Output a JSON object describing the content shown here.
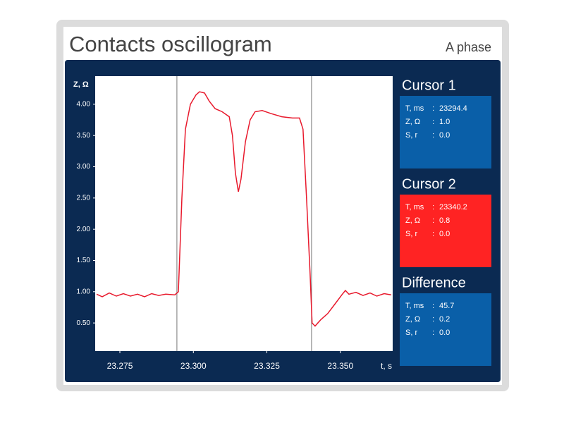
{
  "header": {
    "title": "Contacts oscillogram",
    "phase": "A phase"
  },
  "chart_data": {
    "type": "line",
    "ylabel": "Z, Ω",
    "xlabel": "t, s",
    "x": [
      23.2671,
      23.269,
      23.2714,
      23.2738,
      23.2762,
      23.2786,
      23.281,
      23.2834,
      23.2858,
      23.2882,
      23.2906,
      23.2937,
      23.2949,
      23.2961,
      23.2973,
      23.299,
      23.3009,
      23.3021,
      23.3038,
      23.3054,
      23.3074,
      23.3098,
      23.3122,
      23.3133,
      23.3143,
      23.3153,
      23.3162,
      23.3177,
      23.3193,
      23.321,
      23.3234,
      23.3265,
      23.3301,
      23.3337,
      23.3361,
      23.3373,
      23.3385,
      23.3397,
      23.3404,
      23.3414,
      23.3433,
      23.3457,
      23.3481,
      23.3505,
      23.3517,
      23.3529,
      23.3553,
      23.3577,
      23.3601,
      23.3624,
      23.3649,
      23.3673
    ],
    "series": [
      {
        "color": "#e8192c",
        "values": [
          0.96,
          0.92,
          0.98,
          0.93,
          0.97,
          0.93,
          0.96,
          0.92,
          0.97,
          0.94,
          0.96,
          0.95,
          1.0,
          2.5,
          3.6,
          4.0,
          4.15,
          4.2,
          4.18,
          4.05,
          3.93,
          3.88,
          3.8,
          3.5,
          2.9,
          2.6,
          2.8,
          3.4,
          3.75,
          3.88,
          3.9,
          3.85,
          3.8,
          3.78,
          3.78,
          3.6,
          2.5,
          1.3,
          0.5,
          0.45,
          0.55,
          0.65,
          0.8,
          0.95,
          1.02,
          0.96,
          0.99,
          0.94,
          0.98,
          0.93,
          0.97,
          0.95
        ]
      }
    ],
    "xlim": [
      23.2666,
      23.3678
    ],
    "xticks": [
      23.275,
      {
        "value": 23.3,
        "label": "23.300"
      },
      23.325,
      {
        "value": 23.35,
        "label": "23.350"
      }
    ],
    "ylim": [
      0.05,
      4.45
    ],
    "yticks": [
      {
        "value": 0.5,
        "label": "0.50"
      },
      {
        "value": 1,
        "label": "1.00"
      },
      {
        "value": 1.5,
        "label": "1.50"
      },
      {
        "value": 2,
        "label": "2.00"
      },
      {
        "value": 2.5,
        "label": "2.50"
      },
      {
        "value": 3,
        "label": "3.00"
      },
      {
        "value": 3.5,
        "label": "3.50"
      },
      {
        "value": 4,
        "label": "4.00"
      }
    ],
    "grid": false
  },
  "separator": ":",
  "panels": [
    {
      "title": "Cursor   1",
      "color": "#0a5fa8",
      "rows": [
        {
          "name": "T, ms",
          "value": "23294.4"
        },
        {
          "name": "Z, Ω",
          "value": "1.0"
        },
        {
          "name": "S, r",
          "value": "0.0"
        }
      ]
    },
    {
      "title": "Cursor   2",
      "color": "#ff2323",
      "rows": [
        {
          "name": "T, ms",
          "value": "23340.2"
        },
        {
          "name": "Z, Ω",
          "value": "0.8"
        },
        {
          "name": "S, r",
          "value": "0.0"
        }
      ]
    },
    {
      "title": "Difference",
      "color": "#0a5fa8",
      "rows": [
        {
          "name": "T, ms",
          "value": "45.7"
        },
        {
          "name": "Z, Ω",
          "value": "0.2"
        },
        {
          "name": "S, r",
          "value": "0.0"
        }
      ]
    }
  ]
}
